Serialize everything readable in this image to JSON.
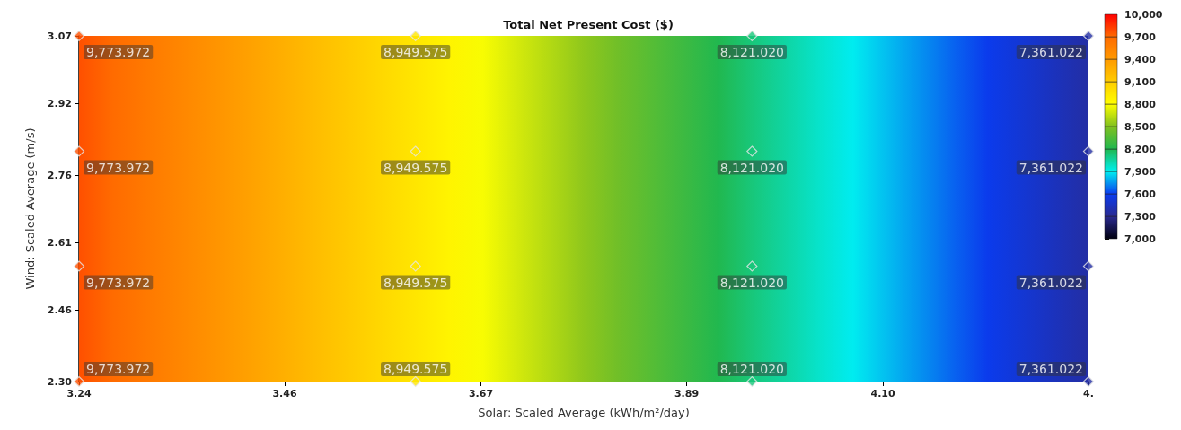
{
  "chart_data": {
    "type": "scatter",
    "title": "Total Net Present Cost ($)",
    "xlabel": "Solar: Scaled Average (kWh/m²/day)",
    "ylabel": "Wind: Scaled Average (m/s)",
    "x": [
      3.24,
      3.6,
      3.96,
      4.32,
      3.24,
      3.6,
      3.96,
      4.32,
      3.24,
      3.6,
      3.96,
      4.32,
      3.24,
      3.6,
      3.96,
      4.32
    ],
    "values": [
      3.07,
      3.07,
      3.07,
      3.07,
      2.813,
      2.813,
      2.813,
      2.813,
      2.557,
      2.557,
      2.557,
      2.557,
      2.3,
      2.3,
      2.3,
      2.3
    ],
    "cvalues": [
      9773.972,
      8949.575,
      8121.02,
      7361.022,
      9773.972,
      8949.575,
      8121.02,
      7361.022,
      9773.972,
      8949.575,
      8121.02,
      7361.022,
      9773.972,
      8949.575,
      8121.02,
      7361.022
    ],
    "annotations": [
      {
        "text": "9,773.972",
        "x": 3.24,
        "y": 3.07
      },
      {
        "text": "8,949.575",
        "x": 3.6,
        "y": 3.07
      },
      {
        "text": "8,121.020",
        "x": 3.96,
        "y": 3.07
      },
      {
        "text": "7,361.022",
        "x": 4.32,
        "y": 3.07
      },
      {
        "text": "9,773.972",
        "x": 3.24,
        "y": 2.813
      },
      {
        "text": "8,949.575",
        "x": 3.6,
        "y": 2.813
      },
      {
        "text": "8,121.020",
        "x": 3.96,
        "y": 2.813
      },
      {
        "text": "7,361.022",
        "x": 4.32,
        "y": 2.813
      },
      {
        "text": "9,773.972",
        "x": 3.24,
        "y": 2.557
      },
      {
        "text": "8,949.575",
        "x": 3.6,
        "y": 2.557
      },
      {
        "text": "8,121.020",
        "x": 3.96,
        "y": 2.557
      },
      {
        "text": "7,361.022",
        "x": 4.32,
        "y": 2.557
      },
      {
        "text": "9,773.972",
        "x": 3.24,
        "y": 2.3
      },
      {
        "text": "8,949.575",
        "x": 3.6,
        "y": 2.3
      },
      {
        "text": "8,121.020",
        "x": 3.96,
        "y": 2.3
      },
      {
        "text": "7,361.022",
        "x": 4.32,
        "y": 2.3
      }
    ],
    "xlim": [
      3.24,
      4.32
    ],
    "xticks": [
      3.24,
      3.46,
      3.67,
      3.89,
      {
        "value": 4.1,
        "label": "4.10"
      },
      {
        "value": 4.32,
        "label": "4."
      }
    ],
    "ylim": [
      2.3,
      3.07
    ],
    "yticks": [
      {
        "value": 2.3,
        "label": "2.30"
      },
      2.46,
      2.61,
      2.76,
      2.92,
      3.07
    ],
    "clim": [
      7000,
      10000
    ],
    "cticks": [
      {
        "value": 7000,
        "label": "7,000"
      },
      {
        "value": 7300,
        "label": "7,300"
      },
      {
        "value": 7600,
        "label": "7,600"
      },
      {
        "value": 7900,
        "label": "7,900"
      },
      {
        "value": 8200,
        "label": "8,200"
      },
      {
        "value": 8500,
        "label": "8,500"
      },
      {
        "value": 8800,
        "label": "8,800"
      },
      {
        "value": 9100,
        "label": "9,100"
      },
      {
        "value": 9400,
        "label": "9,400"
      },
      {
        "value": 9700,
        "label": "9,700"
      },
      {
        "value": 10000,
        "label": "10,000"
      }
    ],
    "marker": "diamond",
    "grid": false
  }
}
